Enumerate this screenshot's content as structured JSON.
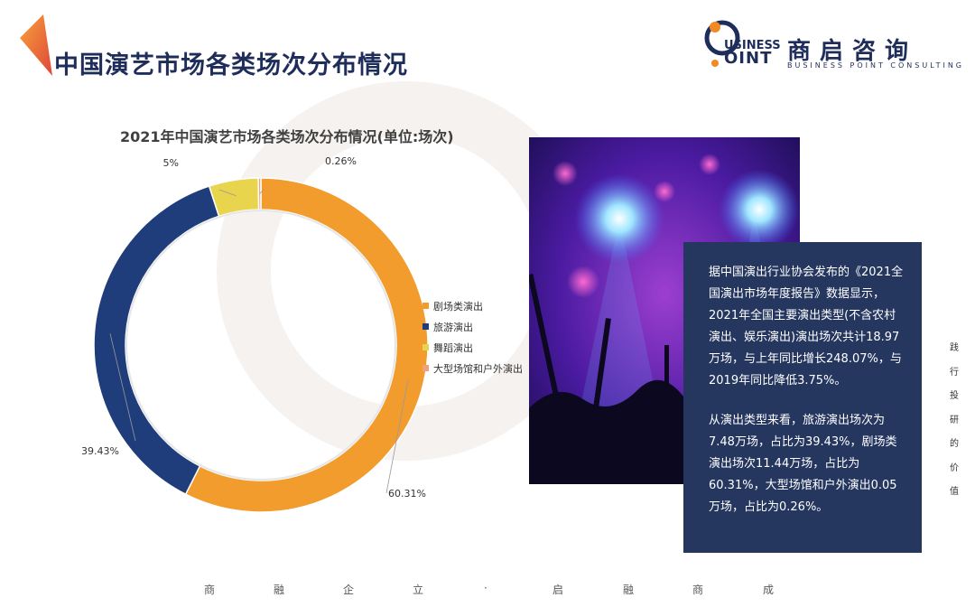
{
  "page": {
    "title": "中国演艺市场各类场次分布情况"
  },
  "logo": {
    "en_line1": "USINESS",
    "en_line2": "OINT",
    "cn": "商启咨询",
    "sub": "BUSINESS POINT CONSULTING"
  },
  "chart_data": {
    "type": "pie",
    "title": "2021年中国演艺市场各类场次分布情况(单位:场次)",
    "categories": [
      "剧场类演出",
      "旅游演出",
      "舞蹈演出",
      "大型场馆和户外演出"
    ],
    "values": [
      60.31,
      39.43,
      5,
      0.26
    ],
    "value_labels": [
      "60.31%",
      "39.43%",
      "5%",
      "0.26%"
    ],
    "colors": [
      "#f39c2e",
      "#1f3d7a",
      "#e8d44d",
      "#f0a07a"
    ],
    "legend_position": "right",
    "donut": true
  },
  "textbox": {
    "para1": "据中国演出行业协会发布的《2021全国演出市场年度报告》数据显示，2021年全国主要演出类型(不含农村演出、娱乐演出)演出场次共计18.97万场，与上年同比增长248.07%，与2019年同比降低3.75%。",
    "para2": "从演出类型来看，旅游演出场次为7.48万场，占比为39.43%，剧场类演出场次11.44万场，占比为60.31%，大型场馆和户外演出0.05万场，占比为0.26%。"
  },
  "side_text": [
    "践",
    "行",
    "投",
    "研",
    "的",
    "价",
    "值"
  ],
  "footer": [
    "商",
    "融",
    "企",
    "立",
    "·",
    "启",
    "融",
    "商",
    "成"
  ],
  "colors": {
    "navy": "#1f2d5a",
    "accent_orange": "#f08a24",
    "accent_red": "#e0453a"
  }
}
